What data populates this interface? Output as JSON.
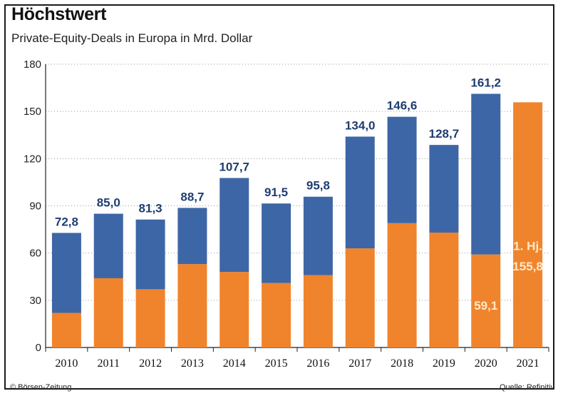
{
  "header": {
    "title": "Höchstwert",
    "subtitle": "Private-Equity-Deals in Europa in Mrd. Dollar"
  },
  "footer": {
    "source_left": "© Börsen-Zeitung",
    "source_right": "Quelle: Refinitiv"
  },
  "colors": {
    "total": "#3d66a6",
    "first_half": "#f0842c",
    "label": "#1f3d70",
    "inner_label": "#ffe9c9"
  },
  "chart_data": {
    "type": "bar",
    "stacked": true,
    "title": "Höchstwert",
    "subtitle": "Private-Equity-Deals in Europa in Mrd. Dollar",
    "categories": [
      "2010",
      "2011",
      "2012",
      "2013",
      "2014",
      "2015",
      "2016",
      "2017",
      "2018",
      "2019",
      "2020",
      "2021"
    ],
    "series": [
      {
        "values": [
          22,
          44,
          37,
          53,
          48,
          41,
          46,
          63,
          79,
          73,
          59.1,
          155.8
        ]
      },
      {
        "values": [
          50.8,
          41.0,
          44.3,
          35.7,
          59.7,
          50.5,
          49.8,
          71.0,
          67.6,
          55.7,
          102.1,
          0
        ]
      }
    ],
    "totals": [
      72.8,
      85.0,
      81.3,
      88.7,
      107.7,
      91.5,
      95.8,
      134.0,
      146.6,
      128.7,
      161.2,
      null
    ],
    "total_labels": [
      "72,8",
      "85,0",
      "81,3",
      "88,7",
      "107,7",
      "91,5",
      "95,8",
      "134,0",
      "146,6",
      "128,7",
      "161,2",
      ""
    ],
    "inner_labels": [
      {
        "category": "2020",
        "text": "59,1"
      },
      {
        "category": "2021",
        "text": "1. Hj."
      },
      {
        "category": "2021",
        "text": "155,8"
      }
    ],
    "yticks": [
      0,
      30,
      60,
      90,
      120,
      150,
      180
    ],
    "ylim": [
      0,
      180
    ],
    "grid": true,
    "legend": "none"
  }
}
